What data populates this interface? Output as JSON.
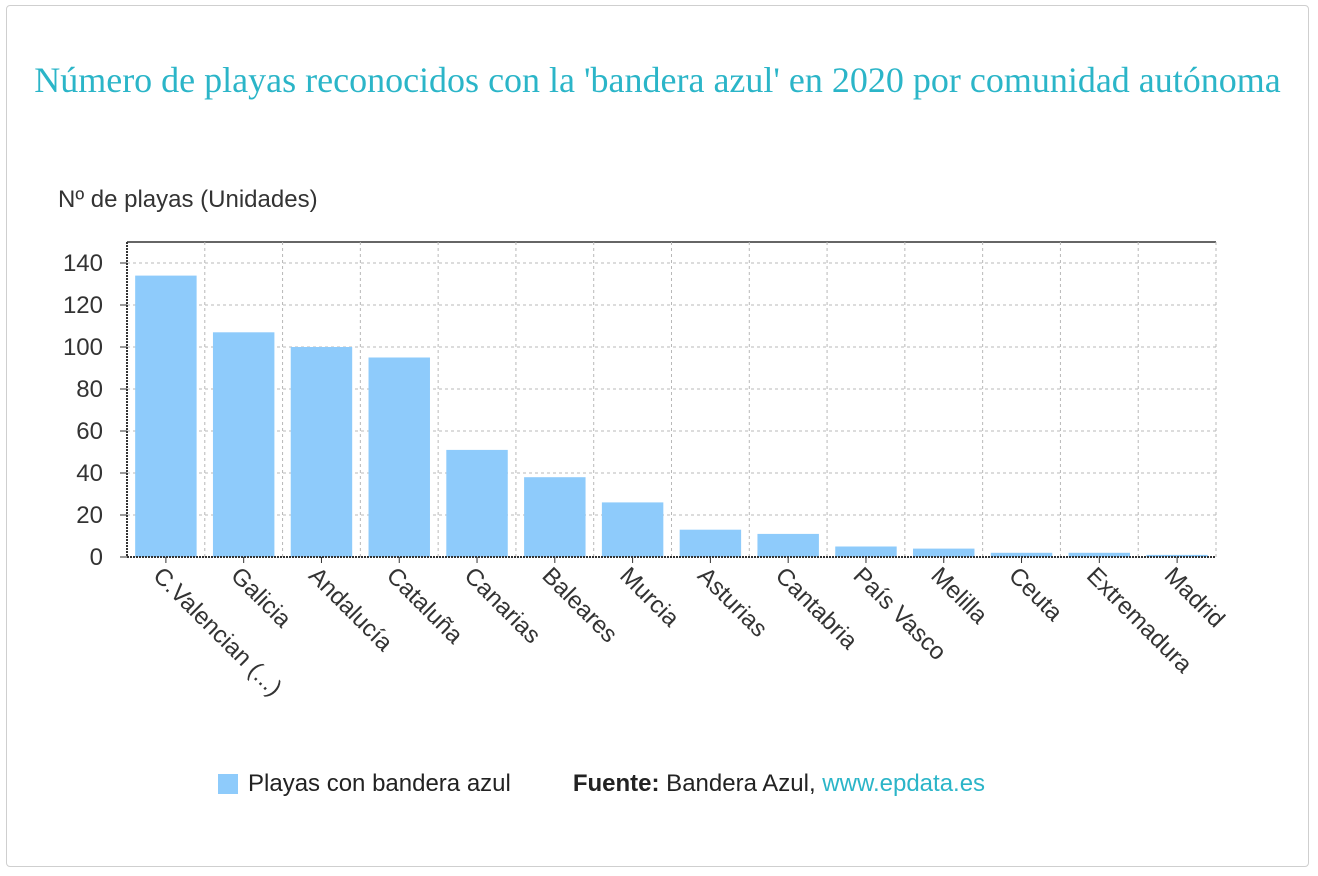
{
  "title": "Número de playas reconocidos con la 'bandera azul' en 2020 por comunidad autónoma",
  "legend": {
    "label": "Playas con bandera azul"
  },
  "source": {
    "label": "Fuente:",
    "text": " Bandera Azul, ",
    "link": "www.epdata.es"
  },
  "colors": {
    "bar": "#8ecbfb",
    "title": "#2bb5c8",
    "grid": "#b8b8b8",
    "axis": "#333333"
  },
  "chart_data": {
    "type": "bar",
    "ylabel": "Nº de playas (Unidades)",
    "ylim": [
      0,
      150
    ],
    "yticks": [
      0,
      20,
      40,
      60,
      80,
      100,
      120,
      140
    ],
    "grid": true,
    "legend_position": "bottom",
    "categories": [
      "C.Valencian (...)",
      "Galicia",
      "Andalucía",
      "Cataluña",
      "Canarias",
      "Baleares",
      "Murcia",
      "Asturias",
      "Cantabria",
      "País Vasco",
      "Melilla",
      "Ceuta",
      "Extremadura",
      "Madrid"
    ],
    "series": [
      {
        "name": "Playas con bandera azul",
        "values": [
          134,
          107,
          100,
          95,
          51,
          38,
          26,
          13,
          11,
          5,
          4,
          2,
          2,
          1
        ]
      }
    ]
  }
}
